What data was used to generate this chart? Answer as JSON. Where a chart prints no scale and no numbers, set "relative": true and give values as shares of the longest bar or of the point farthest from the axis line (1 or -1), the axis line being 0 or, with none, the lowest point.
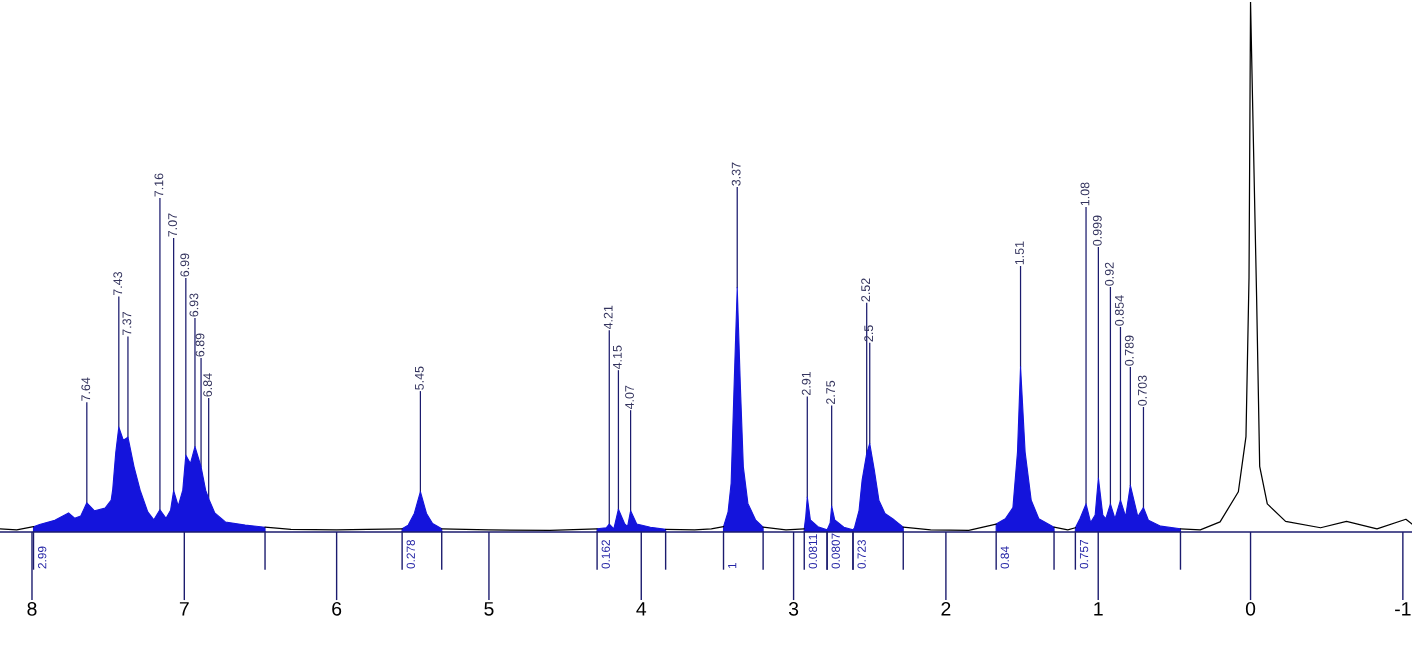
{
  "chart_data": {
    "type": "line",
    "relative": true,
    "xlim": [
      8.21,
      -1.06
    ],
    "xticks": [
      8,
      7,
      6,
      5,
      4,
      3,
      2,
      1,
      0,
      -1
    ],
    "series": [
      {
        "color": "#000000",
        "x": [
          8.21,
          8.1,
          7.99,
          7.5,
          6.47,
          6.3,
          6.0,
          5.8,
          5.57,
          5.45,
          5.31,
          5.0,
          4.6,
          4.29,
          4.0,
          3.84,
          3.65,
          3.54,
          3.46,
          3.3,
          3.2,
          3.05,
          2.93,
          2.5,
          2.28,
          2.1,
          1.85,
          1.67,
          1.5,
          1.29,
          1.2,
          1.15,
          0.8,
          0.46,
          0.33,
          0.2,
          0.08,
          0.03,
          0.01,
          0.0,
          -0.04,
          -0.06,
          -0.11,
          -0.23,
          -0.46,
          -0.63,
          -0.83,
          -1.02,
          -1.06
        ],
        "values": [
          0.006,
          0.004,
          0.01,
          null,
          0.009,
          0.005,
          0.004,
          0.005,
          0.006,
          null,
          0.006,
          0.004,
          0.003,
          0.006,
          null,
          0.005,
          0.004,
          0.006,
          0.01,
          null,
          0.009,
          0.004,
          0.006,
          null,
          0.009,
          0.004,
          0.003,
          0.015,
          null,
          0.009,
          0.004,
          0.008,
          null,
          0.006,
          0.004,
          0.019,
          0.076,
          0.18,
          0.48,
          1,
          0.44,
          0.124,
          0.053,
          0.02,
          0.008,
          0.02,
          0.006,
          0.024,
          0.015
        ]
      },
      {
        "type": "area",
        "name": "2.99",
        "color": "#1414dc",
        "x": [
          7.99,
          7.95,
          7.85,
          7.76,
          7.72,
          7.68,
          7.64,
          7.59,
          7.52,
          7.48,
          7.47,
          7.45,
          7.43,
          7.4,
          7.37,
          7.33,
          7.29,
          7.24,
          7.2,
          7.16,
          7.12,
          7.09,
          7.07,
          7.04,
          7.01,
          6.99,
          6.96,
          6.93,
          6.91,
          6.89,
          6.86,
          6.84,
          6.8,
          6.73,
          6.6,
          6.47
        ],
        "values": [
          0.01,
          0.014,
          0.022,
          0.036,
          0.026,
          0.03,
          0.055,
          0.04,
          0.045,
          0.06,
          0.08,
          0.15,
          0.198,
          0.173,
          0.179,
          0.123,
          0.079,
          0.038,
          0.023,
          0.042,
          0.026,
          0.041,
          0.078,
          0.049,
          0.079,
          0.145,
          0.129,
          0.161,
          0.142,
          0.123,
          0.079,
          0.063,
          0.036,
          0.019,
          0.013,
          0.009
        ]
      },
      {
        "type": "area",
        "name": "0.278",
        "color": "#1414dc",
        "x": [
          5.57,
          5.53,
          5.49,
          5.45,
          5.41,
          5.37,
          5.31
        ],
        "values": [
          0.006,
          0.013,
          0.035,
          0.076,
          0.035,
          0.016,
          0.006
        ]
      },
      {
        "type": "area",
        "name": "0.162",
        "color": "#1414dc",
        "x": [
          4.29,
          4.23,
          4.21,
          4.18,
          4.15,
          4.11,
          4.09,
          4.07,
          4.03,
          3.94,
          3.84
        ],
        "values": [
          0.006,
          0.008,
          0.015,
          0.006,
          0.043,
          0.016,
          0.01,
          0.04,
          0.015,
          0.009,
          0.005
        ]
      },
      {
        "type": "area",
        "name": "1",
        "color": "#1414dc",
        "x": [
          3.46,
          3.43,
          3.41,
          3.39,
          3.37,
          3.35,
          3.33,
          3.3,
          3.25,
          3.2
        ],
        "values": [
          0.01,
          0.038,
          0.092,
          0.28,
          0.461,
          0.28,
          0.123,
          0.054,
          0.023,
          0.009
        ]
      },
      {
        "type": "area",
        "name": "0.0811",
        "color": "#1414dc",
        "x": [
          2.93,
          2.92,
          2.91,
          2.89,
          2.84,
          2.78
        ],
        "values": [
          0.006,
          0.029,
          0.066,
          0.023,
          0.01,
          0.004
        ]
      },
      {
        "type": "area",
        "name": "0.0807",
        "color": "#1414dc",
        "x": [
          2.78,
          2.76,
          2.75,
          2.73,
          2.67,
          2.61
        ],
        "values": [
          0.004,
          0.017,
          0.049,
          0.023,
          0.009,
          0.004
        ]
      },
      {
        "type": "area",
        "name": "0.723",
        "color": "#1414dc",
        "x": [
          2.61,
          2.6,
          2.57,
          2.55,
          2.52,
          2.5,
          2.47,
          2.44,
          2.4,
          2.34,
          2.28
        ],
        "values": [
          0.004,
          0.008,
          0.041,
          0.098,
          0.148,
          0.167,
          0.117,
          0.06,
          0.035,
          0.023,
          0.009
        ]
      },
      {
        "type": "area",
        "name": "0.84",
        "color": "#1414dc",
        "x": [
          1.67,
          1.61,
          1.56,
          1.53,
          1.51,
          1.48,
          1.44,
          1.39,
          1.29
        ],
        "values": [
          0.015,
          0.025,
          0.046,
          0.151,
          0.312,
          0.151,
          0.06,
          0.025,
          0.009
        ]
      },
      {
        "type": "area",
        "name": "0.757",
        "color": "#1414dc",
        "x": [
          1.15,
          1.12,
          1.08,
          1.05,
          1.02,
          0.999,
          0.97,
          0.95,
          0.92,
          0.89,
          0.854,
          0.82,
          0.789,
          0.74,
          0.703,
          0.67,
          0.59,
          0.46
        ],
        "values": [
          0.008,
          0.025,
          0.053,
          0.018,
          0.032,
          0.102,
          0.032,
          0.025,
          0.053,
          0.025,
          0.06,
          0.029,
          0.088,
          0.029,
          0.046,
          0.022,
          0.011,
          0.006
        ]
      }
    ],
    "annotations": [
      {
        "text": "7.64",
        "x": 7.64,
        "y": 0.055
      },
      {
        "text": "7.43",
        "x": 7.43,
        "y": 0.198
      },
      {
        "text": "7.37",
        "x": 7.37,
        "y": 0.179
      },
      {
        "text": "7.16",
        "x": 7.16,
        "y": 0.042
      },
      {
        "text": "7.07",
        "x": 7.07,
        "y": 0.078
      },
      {
        "text": "6.99",
        "x": 6.99,
        "y": 0.145
      },
      {
        "text": "6.93",
        "x": 6.93,
        "y": 0.161
      },
      {
        "text": "6.89",
        "x": 6.89,
        "y": 0.123
      },
      {
        "text": "6.84",
        "x": 6.84,
        "y": 0.063
      },
      {
        "text": "5.45",
        "x": 5.45,
        "y": 0.076
      },
      {
        "text": "4.21",
        "x": 4.21,
        "y": 0.015
      },
      {
        "text": "4.15",
        "x": 4.15,
        "y": 0.043
      },
      {
        "text": "4.07",
        "x": 4.07,
        "y": 0.04
      },
      {
        "text": "3.37",
        "x": 3.37,
        "y": 0.461
      },
      {
        "text": "2.91",
        "x": 2.91,
        "y": 0.066
      },
      {
        "text": "2.75",
        "x": 2.75,
        "y": 0.049
      },
      {
        "text": "2.52",
        "x": 2.52,
        "y": 0.148
      },
      {
        "text": "2.5",
        "x": 2.5,
        "y": 0.167
      },
      {
        "text": "1.51",
        "x": 1.51,
        "y": 0.312
      },
      {
        "text": "1.08",
        "x": 1.08,
        "y": 0.053
      },
      {
        "text": "0.999",
        "x": 0.999,
        "y": 0.102
      },
      {
        "text": "0.92",
        "x": 0.92,
        "y": 0.053
      },
      {
        "text": "0.854",
        "x": 0.854,
        "y": 0.06
      },
      {
        "text": "0.789",
        "x": 0.789,
        "y": 0.088
      },
      {
        "text": "0.703",
        "x": 0.703,
        "y": 0.046
      }
    ]
  }
}
